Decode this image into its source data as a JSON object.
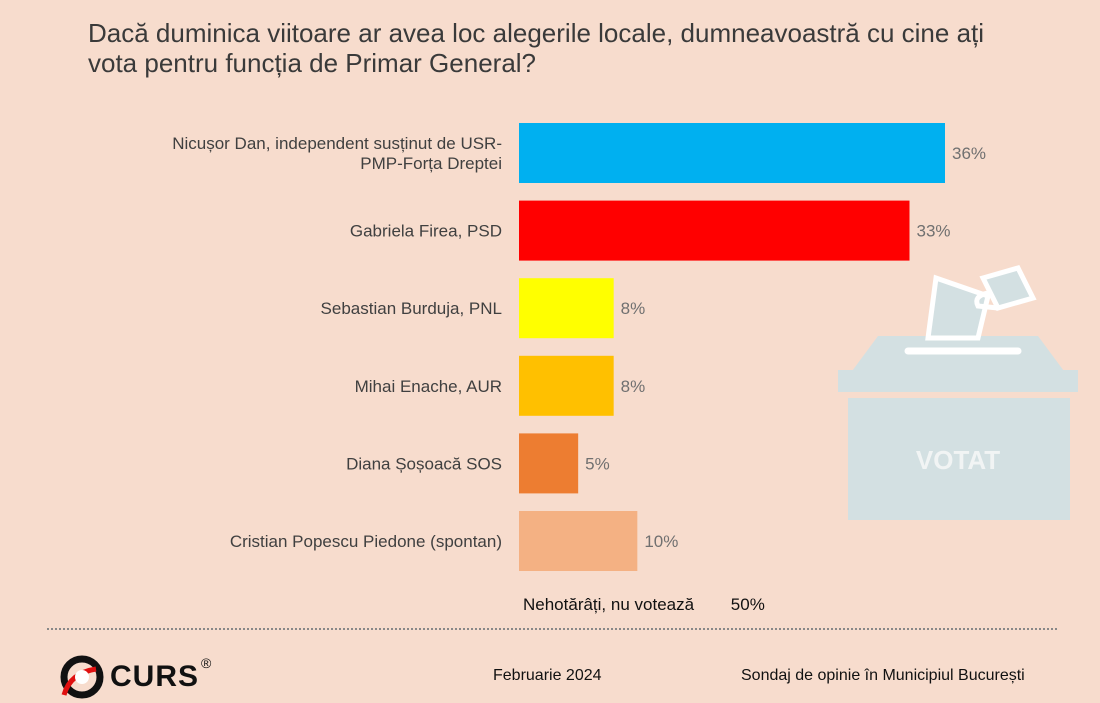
{
  "title": "Dacă duminica viitoare ar avea loc alegerile locale, dumneavoastră cu cine ați vota pentru funcția de Primar General?",
  "chart_data": {
    "type": "bar",
    "orientation": "horizontal",
    "title": "Dacă duminica viitoare ar avea loc alegerile locale, dumneavoastră cu cine ați vota pentru funcția de Primar General?",
    "categories": [
      [
        "Nicușor Dan, independent susținut de USR-",
        "PMP-Forța Dreptei"
      ],
      [
        "Gabriela Firea, PSD"
      ],
      [
        "Sebastian Burduja, PNL"
      ],
      [
        "Mihai Enache, AUR"
      ],
      [
        "Diana Șoșoacă SOS"
      ],
      [
        "Cristian Popescu Piedone (spontan)"
      ]
    ],
    "values": [
      36,
      33,
      8,
      8,
      5,
      10
    ],
    "value_labels": [
      "36%",
      "33%",
      "8%",
      "8%",
      "5%",
      "10%"
    ],
    "colors": [
      "#00b0f0",
      "#ff0000",
      "#ffff00",
      "#ffc000",
      "#ed7d31",
      "#f4b183"
    ],
    "xlim": [
      0,
      36
    ],
    "grid": false,
    "xlabel": "",
    "ylabel": ""
  },
  "undecided": {
    "label": "Nehotărâți, nu votează",
    "value": "50%"
  },
  "ballot_label": "VOTAT",
  "footer": {
    "logo": "CURS",
    "logo_mark": "®",
    "date": "Februarie 2024",
    "source": "Sondaj de opinie în Municipiul București"
  }
}
